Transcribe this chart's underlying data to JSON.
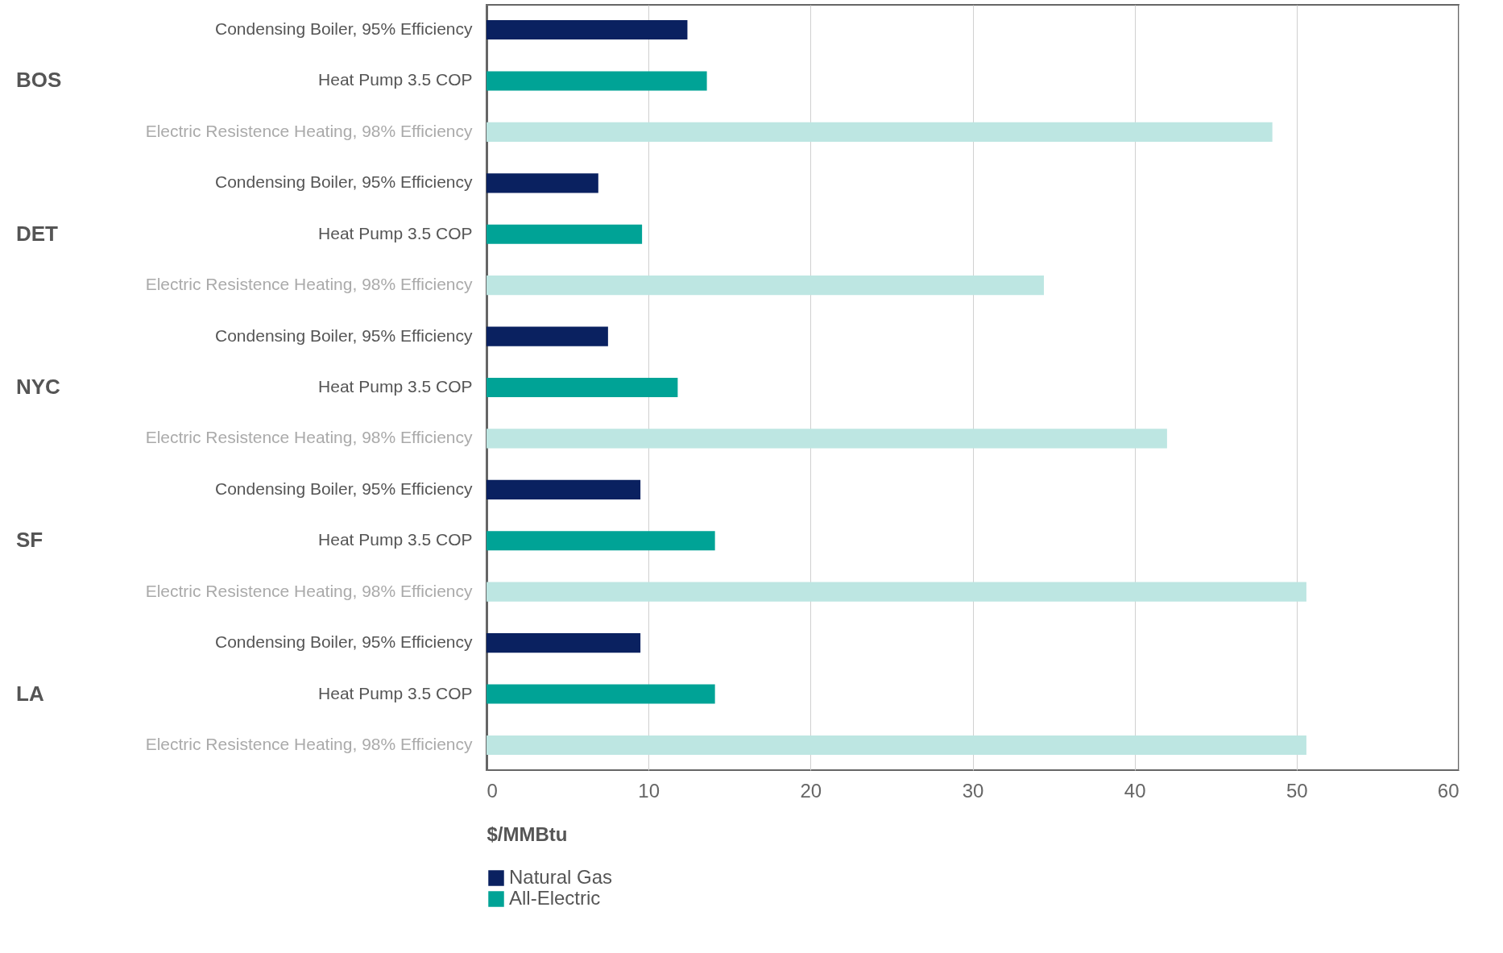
{
  "chart_data": {
    "type": "bar",
    "orientation": "horizontal",
    "xlabel": "$/MMBtu",
    "categories": [
      "Condensing Boiler, 95% Efficiency",
      "Heat Pump 3.5 COP",
      "Electric Resistence Heating, 98% Efficiency",
      "Condensing Boiler, 95% Efficiency",
      "Heat Pump 3.5 COP",
      "Electric Resistence Heating, 98% Efficiency",
      "Condensing Boiler, 95% Efficiency",
      "Heat Pump 3.5 COP",
      "Electric Resistence Heating, 98% Efficiency",
      "Condensing Boiler, 95% Efficiency",
      "Heat Pump 3.5 COP",
      "Electric Resistence Heating, 98% Efficiency",
      "Condensing Boiler, 95% Efficiency",
      "Heat Pump 3.5 COP",
      "Electric Resistence Heating, 98% Efficiency"
    ],
    "series": [
      {
        "name": "Natural Gas",
        "color": "#0a2160",
        "values": [
          12.4,
          null,
          null,
          6.9,
          null,
          null,
          7.5,
          null,
          null,
          9.5,
          null,
          null,
          9.5,
          null,
          null
        ]
      },
      {
        "name": "All-Electric",
        "color": "#00a396",
        "values": [
          null,
          13.6,
          null,
          null,
          9.6,
          null,
          null,
          11.8,
          null,
          null,
          14.1,
          null,
          null,
          14.1,
          null
        ]
      },
      {
        "color": "#bde6e2",
        "values": [
          null,
          null,
          48.5,
          null,
          null,
          34.4,
          null,
          null,
          42.0,
          null,
          null,
          50.6,
          null,
          null,
          50.6
        ]
      }
    ],
    "annotations": [
      "BOS",
      "DET",
      "NYC",
      "SF",
      "LA"
    ],
    "xlim": [
      0,
      60
    ],
    "xticks": [
      0,
      10,
      20,
      30,
      40,
      50,
      60
    ],
    "grid": "x",
    "legend": "bottom left"
  }
}
